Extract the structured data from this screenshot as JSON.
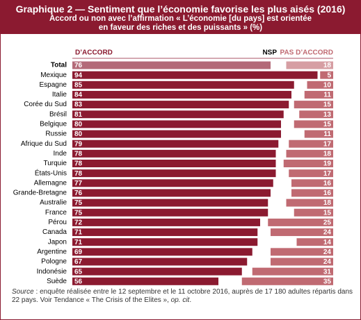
{
  "chart_data": {
    "type": "diverging_bar",
    "title": "Graphique 2 — Sentiment que l’économie favorise les plus aisés (2016)",
    "subtitle_lines": [
      "Accord ou non avec l’affirmation « L’économie [du pays] est orientée",
      "en faveur des riches et des puissants » (%)"
    ],
    "middle_label": "NSP",
    "categories": [
      "Total",
      "Mexique",
      "Espagne",
      "Italie",
      "Corée du Sud",
      "Brésil",
      "Belgique",
      "Russie",
      "Afrique du Sud",
      "Inde",
      "Turquie",
      "États-Unis",
      "Allemagne",
      "Grande-Bretagne",
      "Australie",
      "France",
      "Pérou",
      "Canada",
      "Japon",
      "Argentine",
      "Pologne",
      "Indonésie",
      "Suède"
    ],
    "xlim": [
      0,
      100
    ],
    "series": [
      {
        "name": "D’ACCORD",
        "color": "#8b1a30",
        "values": [
          76,
          94,
          85,
          84,
          83,
          81,
          80,
          80,
          79,
          78,
          78,
          78,
          77,
          76,
          75,
          75,
          72,
          71,
          71,
          69,
          67,
          65,
          56
        ]
      },
      {
        "name": "PAS D’ACCORD",
        "color": "#c06a72",
        "values": [
          18,
          5,
          10,
          11,
          15,
          13,
          15,
          11,
          17,
          18,
          19,
          17,
          16,
          16,
          18,
          15,
          25,
          24,
          14,
          24,
          24,
          31,
          35
        ]
      }
    ],
    "source_label": "Source",
    "source_text": " : enquête réalisée entre le 12 septembre et le 11 octobre 2016, auprès de 17 180 adultes répartis dans 22 pays. Voir Tendance « The Crisis of the Elites », ",
    "source_ref": "op. cit",
    "source_end": "."
  }
}
